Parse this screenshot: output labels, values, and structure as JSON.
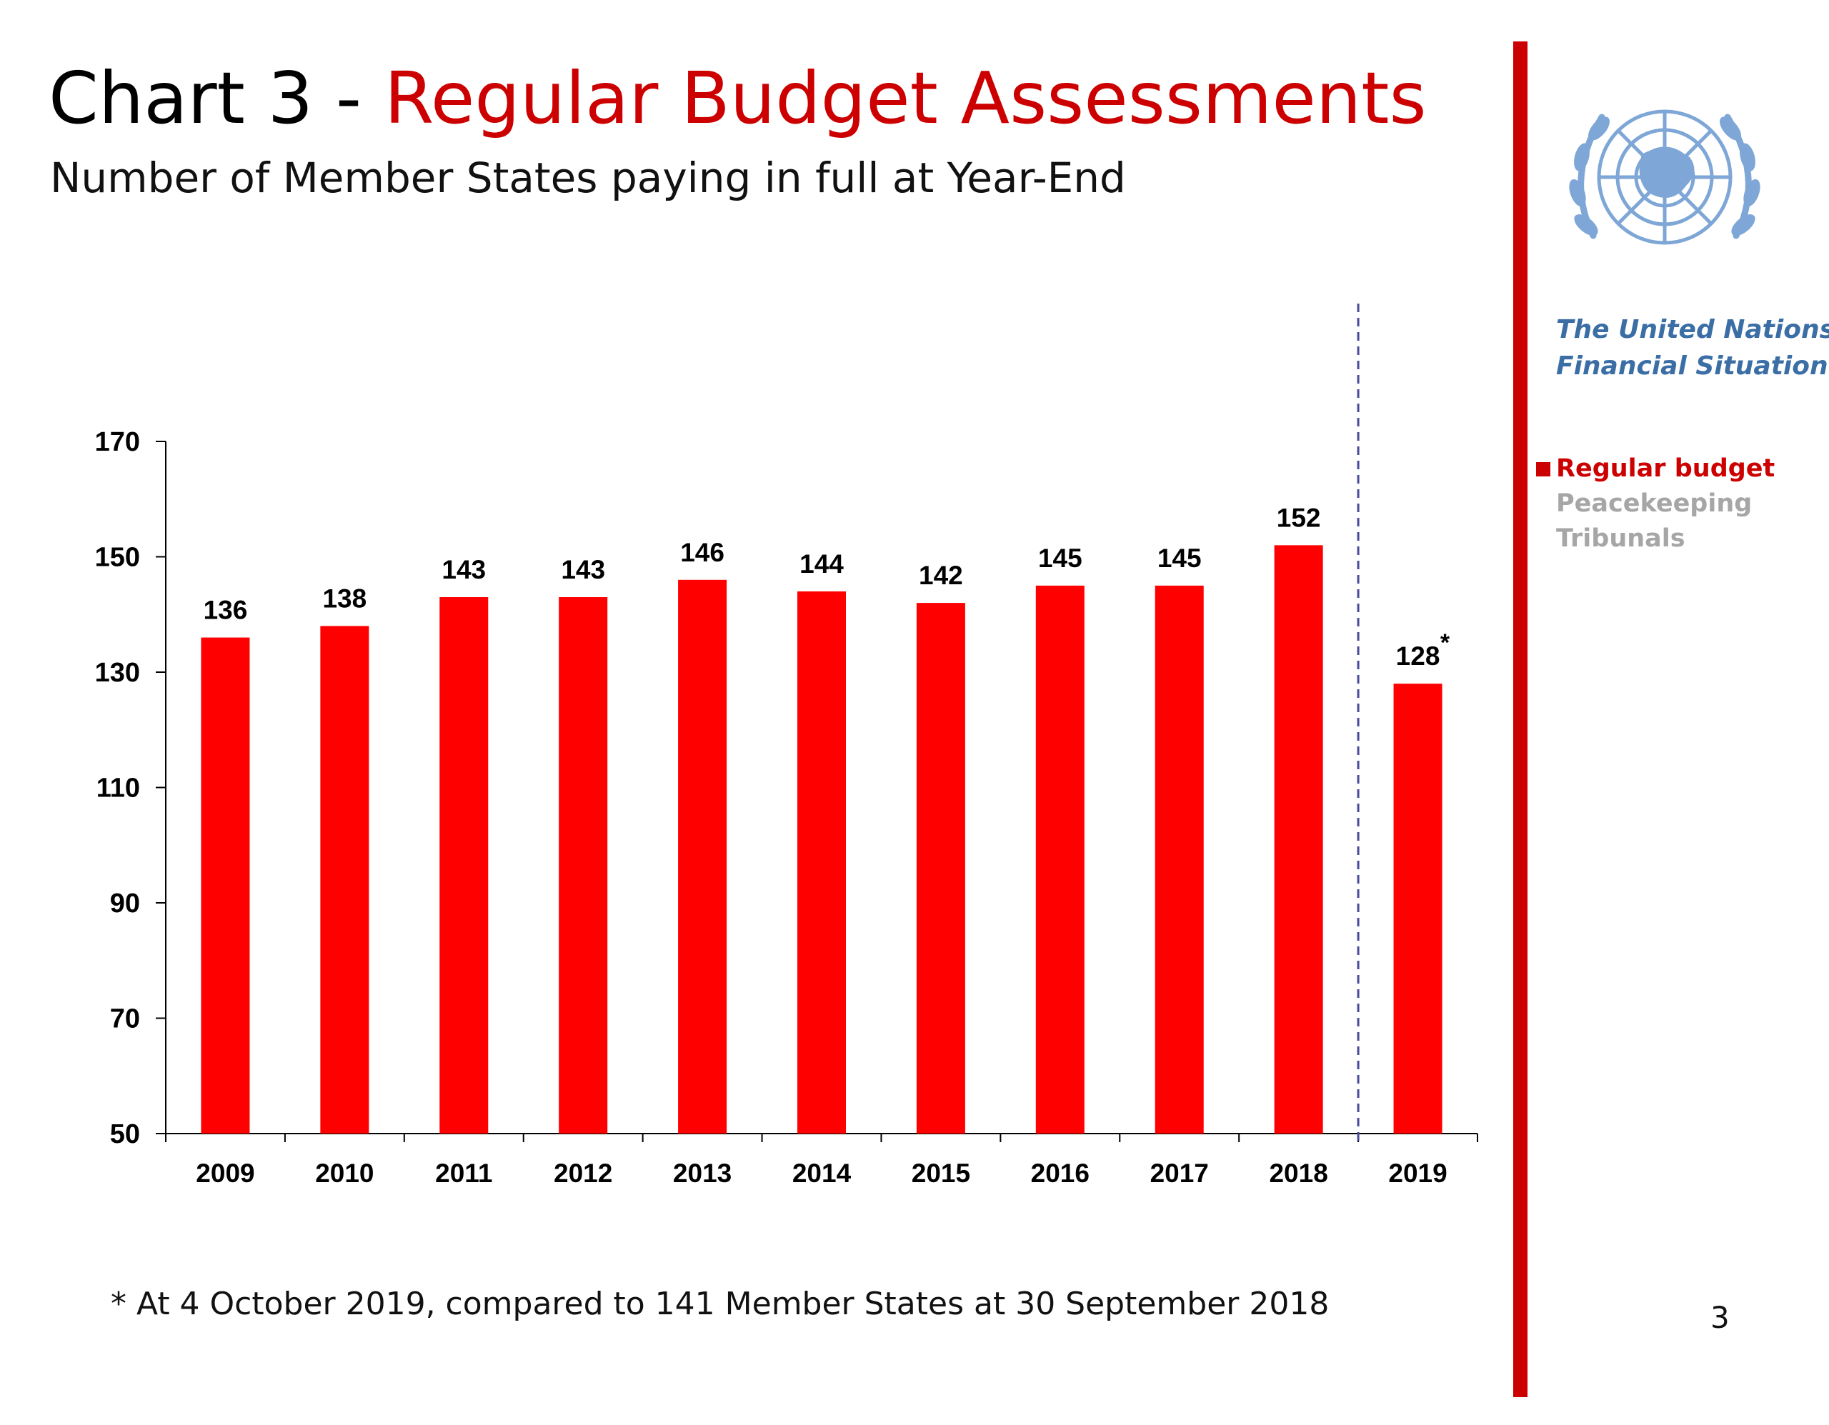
{
  "header": {
    "title_prefix": "Chart 3 - ",
    "title_main": "Regular Budget Assessments",
    "subtitle": "Number of Member States paying in full at Year-End"
  },
  "chart_data": {
    "type": "bar",
    "title": "Chart 3 - Regular Budget Assessments",
    "subtitle": "Number of Member States paying in full at Year-End",
    "categories": [
      "2009",
      "2010",
      "2011",
      "2012",
      "2013",
      "2014",
      "2015",
      "2016",
      "2017",
      "2018",
      "2019"
    ],
    "values": [
      136,
      138,
      143,
      143,
      146,
      144,
      142,
      145,
      145,
      152,
      128
    ],
    "value_labels": [
      "136",
      "138",
      "143",
      "143",
      "146",
      "144",
      "142",
      "145",
      "145",
      "152",
      "128"
    ],
    "annotations": [
      {
        "category": "2019",
        "marker": "*"
      }
    ],
    "ylim": [
      50,
      170
    ],
    "yticks": [
      50,
      70,
      90,
      110,
      130,
      150,
      170
    ],
    "xlabel": "",
    "ylabel": "",
    "bar_color": "#ff0000",
    "grid": false,
    "separator_after": "2018"
  },
  "footnote": "* At 4 October 2019, compared to 141 Member States at 30 September 2018",
  "page_number": "3",
  "sidebar": {
    "emblem": "un-emblem-icon",
    "title_line1": "The United Nations",
    "title_line2": "Financial Situation",
    "nav": [
      {
        "label": "Regular budget",
        "active": true
      },
      {
        "label": "Peacekeeping",
        "active": false
      },
      {
        "label": "Tribunals",
        "active": false
      }
    ]
  },
  "colors": {
    "accent": "#cc0000",
    "bar": "#ff0000",
    "sidebar_title": "#3a6ea5",
    "inactive_nav": "#a6a6a6",
    "emblem": "#7ea6d6"
  }
}
